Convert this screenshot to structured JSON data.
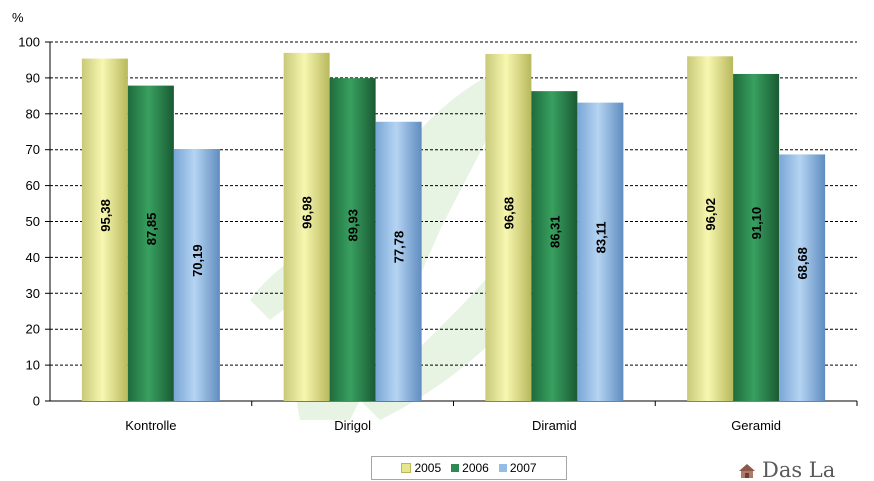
{
  "chart_data": {
    "type": "bar",
    "title": "",
    "ylabel": "%",
    "xlabel": "",
    "ylim": [
      0,
      100
    ],
    "yticks": [
      0,
      10,
      20,
      30,
      40,
      50,
      60,
      70,
      80,
      90,
      100
    ],
    "grid": "horizontal dashed",
    "legend": "bottom",
    "categories": [
      "Kontrolle",
      "Dirigol",
      "Diramid",
      "Geramid"
    ],
    "series": [
      {
        "name": "2005",
        "values": [
          95.38,
          96.98,
          96.68,
          96.02
        ],
        "labels": [
          "95,38",
          "96,98",
          "96,68",
          "96,02"
        ],
        "color": "#e6e68a"
      },
      {
        "name": "2006",
        "values": [
          87.85,
          89.93,
          86.31,
          91.1
        ],
        "labels": [
          "87,85",
          "89,93",
          "86,31",
          "91,10"
        ],
        "color": "#2e8a52"
      },
      {
        "name": "2007",
        "values": [
          70.19,
          77.78,
          83.11,
          68.68
        ],
        "labels": [
          "70,19",
          "77,78",
          "83,11",
          "68,68"
        ],
        "color": "#94bde6"
      }
    ]
  },
  "logo": {
    "text": "Das La"
  }
}
